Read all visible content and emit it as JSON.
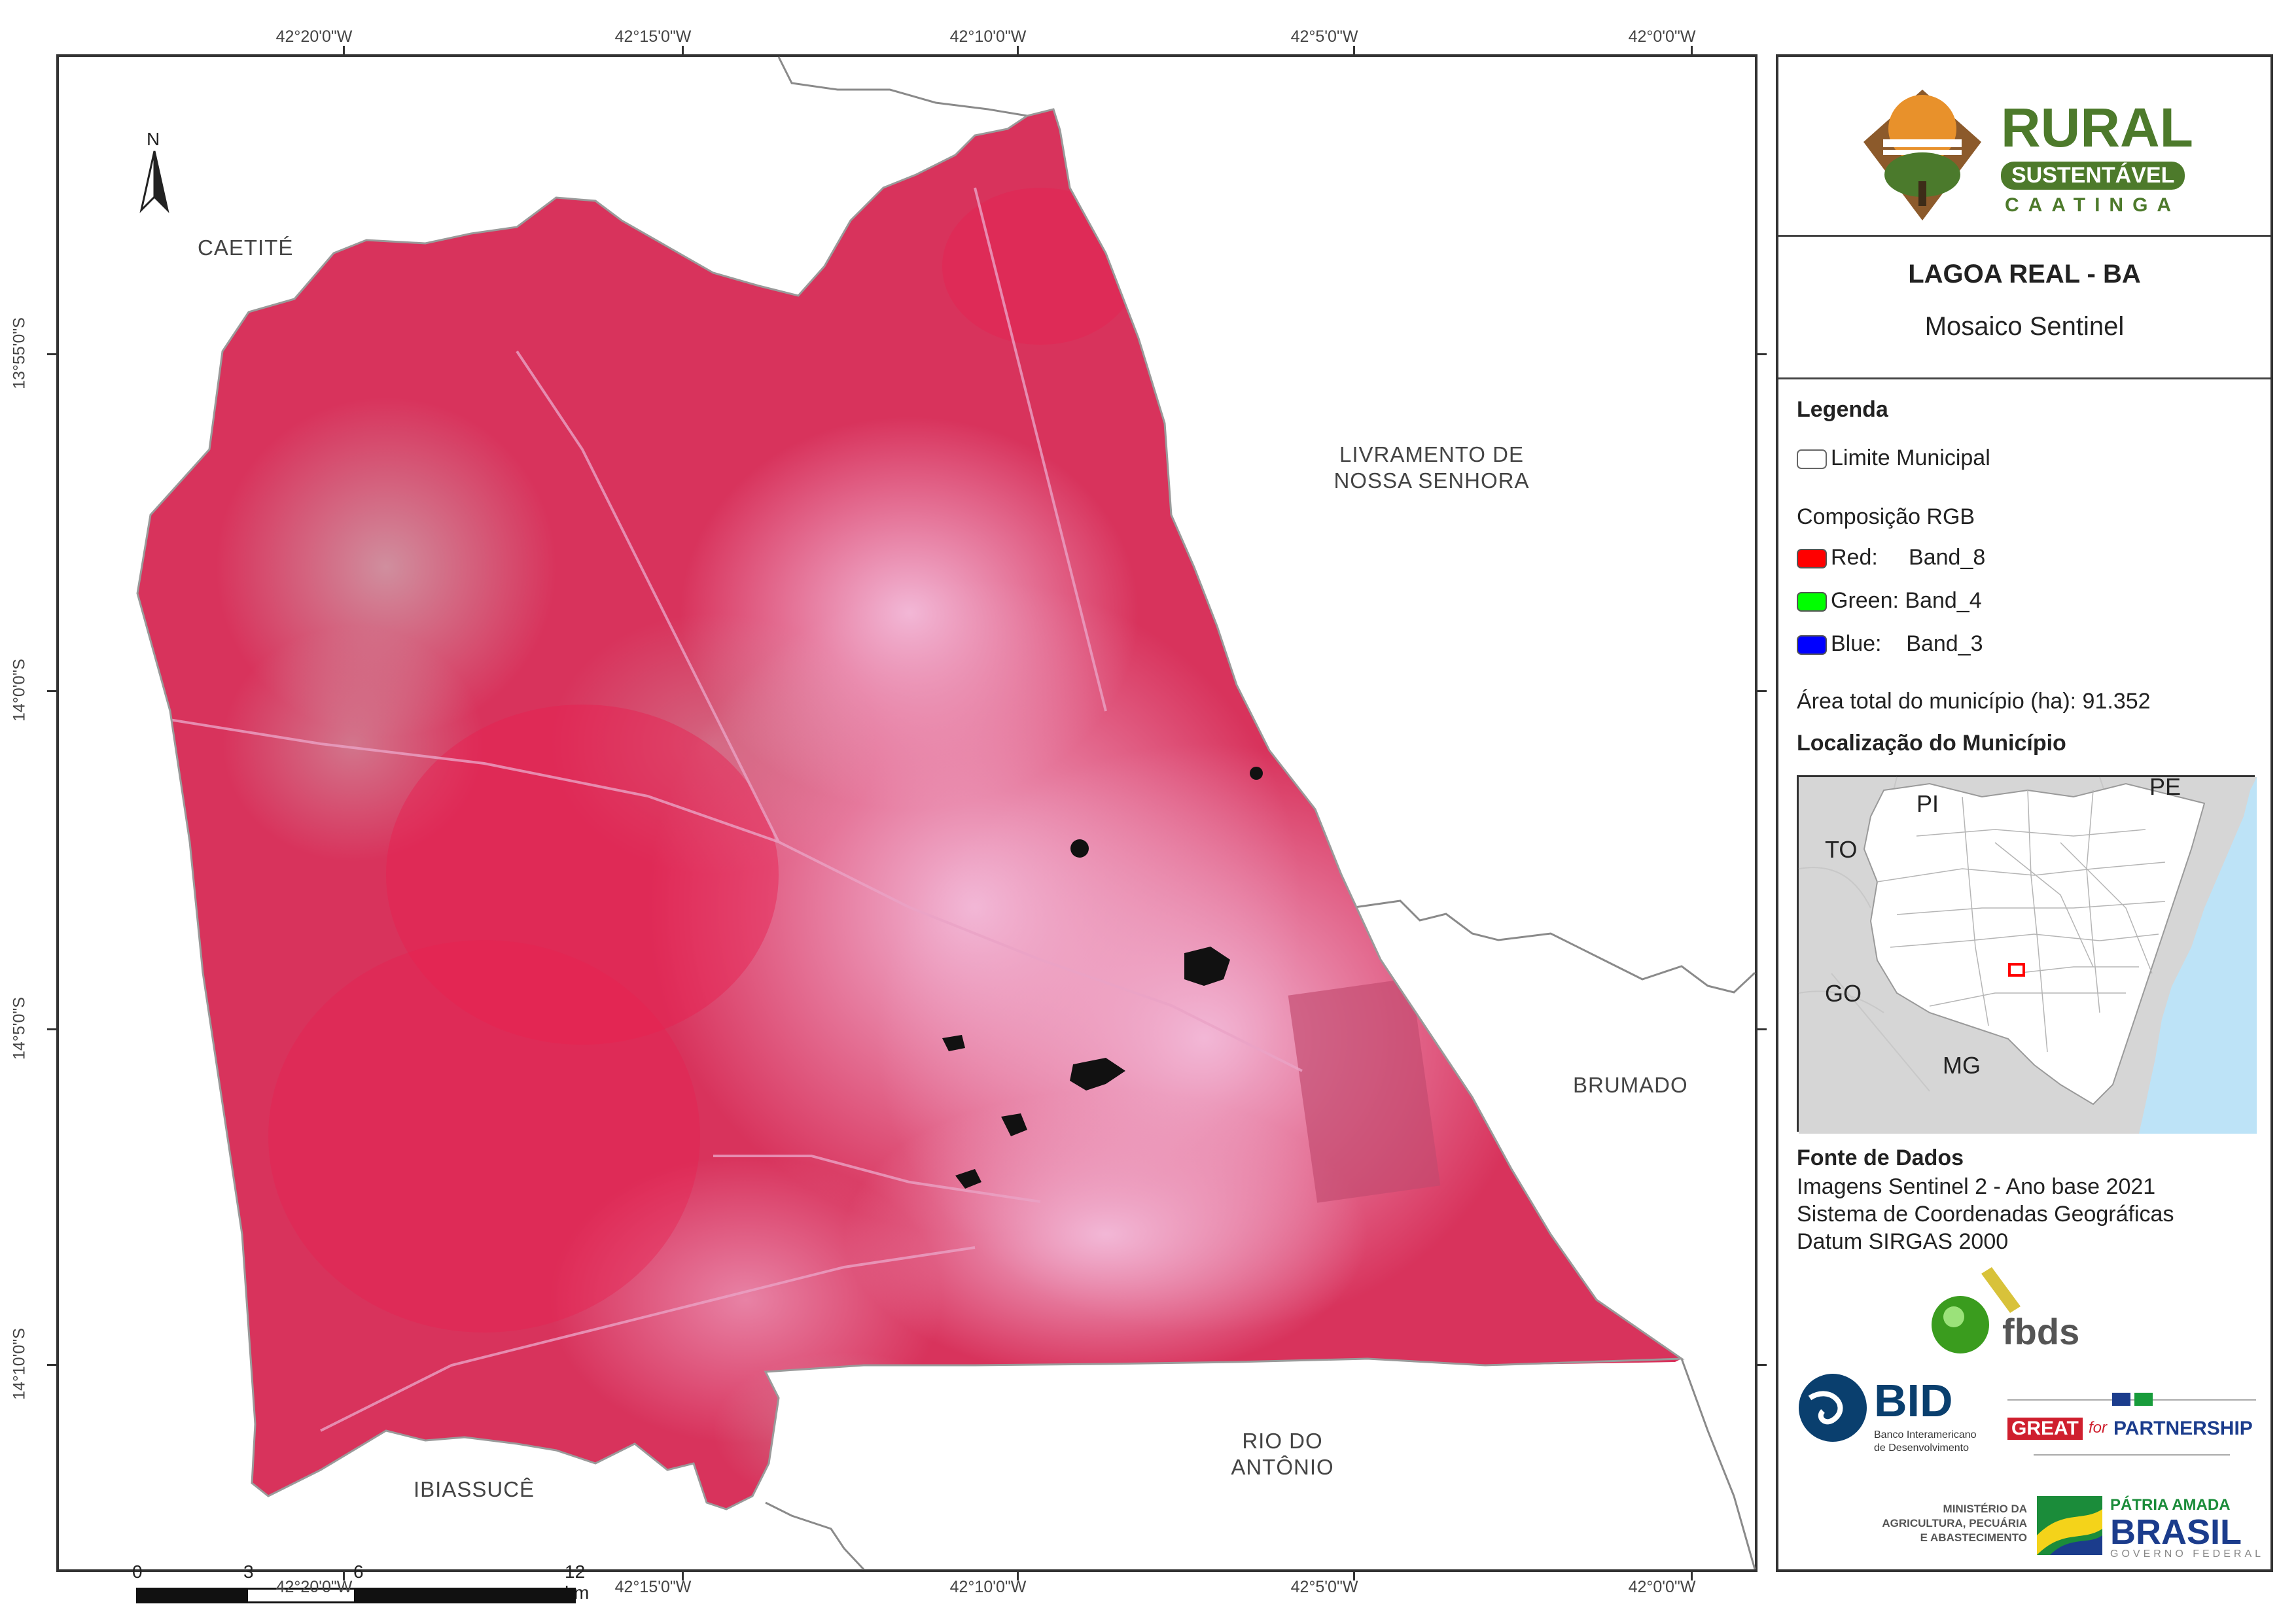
{
  "map": {
    "grid_top_labels": [
      "42°20'0\"W",
      "42°15'0\"W",
      "42°10'0\"W",
      "42°5'0\"W",
      "42°0'0\"W"
    ],
    "grid_bottom_labels": [
      "42°20'0\"W",
      "42°15'0\"W",
      "42°10'0\"W",
      "42°5'0\"W",
      "42°0'0\"W"
    ],
    "grid_left_labels": [
      "13°55'0\"S",
      "14°0'0\"S",
      "14°5'0\"S",
      "14°10'0\"S"
    ],
    "north_label": "N",
    "places": {
      "caetite": "CAETITÉ",
      "livramento_line1": "LIVRAMENTO DE",
      "livramento_line2": "NOSSA SENHORA",
      "brumado": "BRUMADO",
      "rio_line1": "RIO DO",
      "rio_line2": "ANTÔNIO",
      "ibiassuce": "IBIASSUCÊ"
    },
    "scale_labels": [
      "0",
      "3",
      "6",
      "12 km"
    ]
  },
  "panel": {
    "logo": {
      "rural": "RURAL",
      "sustentavel": "SUSTENTÁVEL",
      "caatinga": "CAATINGA"
    },
    "title": "LAGOA REAL - BA",
    "subtitle": "Mosaico Sentinel",
    "legend": {
      "heading": "Legenda",
      "boundary": "Limite Municipal",
      "composition": "Composição RGB",
      "red": "Red:     Band_8",
      "green": "Green: Band_4",
      "blue": "Blue:    Band_3",
      "area": "Área total do município (ha): 91.352"
    },
    "colors": {
      "red": "#ff0000",
      "green": "#00ff00",
      "blue": "#0000ff",
      "ocean": "#bde3f7"
    },
    "location": {
      "heading": "Localização do Município",
      "labels": {
        "pi": "PI",
        "pe": "PE",
        "to": "TO",
        "go": "GO",
        "mg": "MG"
      }
    },
    "sources": {
      "heading": "Fonte de Dados",
      "line1": "Imagens Sentinel 2 - Ano base 2021",
      "line2": "Sistema de Coordenadas Geográficas",
      "line3": "Datum SIRGAS 2000"
    },
    "partners": {
      "fbds": "fbds",
      "bid": "BID",
      "bid_sub1": "Banco Interamericano",
      "bid_sub2": "de Desenvolvimento",
      "great": "GREAT",
      "for": "for",
      "partnership": "PARTNERSHIP",
      "ministry1": "MINISTÉRIO DA",
      "ministry2": "AGRICULTURA, PECUÁRIA",
      "ministry3": "E ABASTECIMENTO",
      "patria": "PÁTRIA AMADA",
      "brasil": "BRASIL",
      "governo": "GOVERNO FEDERAL"
    }
  }
}
